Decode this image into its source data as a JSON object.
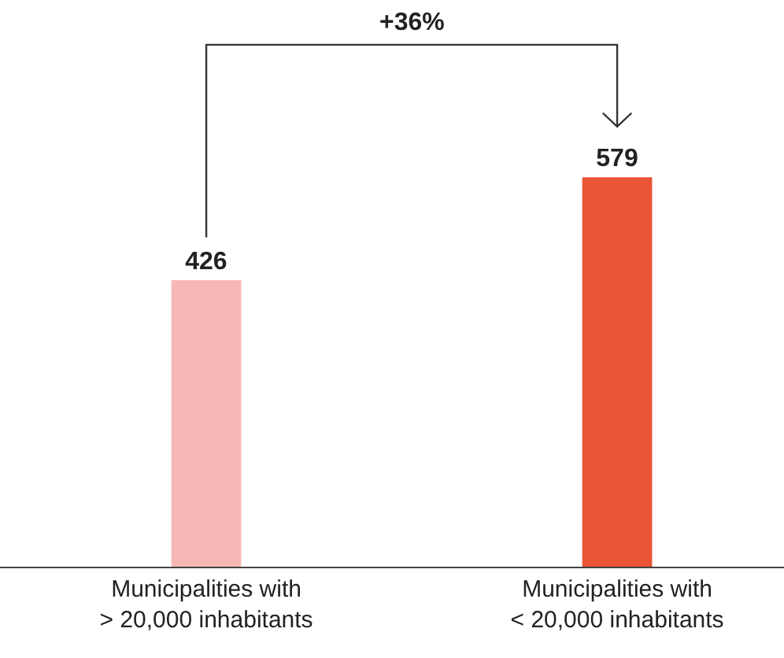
{
  "chart_data": {
    "type": "bar",
    "categories": [
      "Municipalities with\n> 20,000 inhabitants",
      "Municipalities with\n< 20,000 inhabitants"
    ],
    "values": [
      426,
      579
    ],
    "colors": [
      "#f7b8b5",
      "#e95535"
    ],
    "data_labels": true,
    "annotations": [
      "+36%"
    ]
  }
}
